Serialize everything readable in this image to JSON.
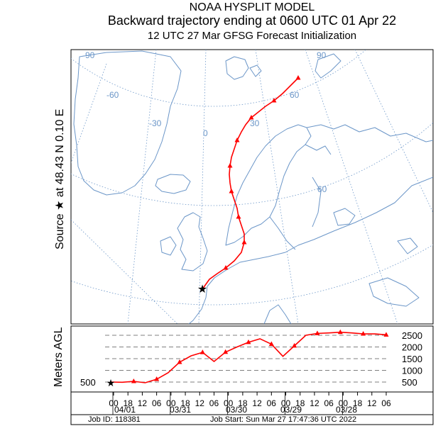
{
  "header": {
    "line1": "NOAA HYSPLIT MODEL",
    "line2": "Backward trajectory ending at 0600 UTC 01 Apr 22",
    "line3": "12 UTC 27 Mar    GFSG  Forecast Initialization"
  },
  "source_label": "Source ★   at    48.43 N    0.10 E",
  "map": {
    "grid_labels": [
      "-90",
      "-60",
      "-30",
      "0",
      "30",
      "60",
      "90",
      "60"
    ],
    "trajectory_color": "#ff0000",
    "coast_color": "#6b96c8",
    "grid_color": "#6b96c8"
  },
  "chart_data": {
    "type": "line",
    "ylabel": "Meters AGL",
    "ytick_labels": [
      "2500",
      "2000",
      "1500",
      "1000",
      "500"
    ],
    "start_height_label": "500",
    "x_hour_labels": [
      "00",
      "18",
      "12",
      "06",
      "00",
      "18",
      "12",
      "06",
      "00",
      "18",
      "12",
      "06",
      "00",
      "18",
      "12",
      "06",
      "00",
      "18",
      "12",
      "06"
    ],
    "x_date_labels": [
      "04/01",
      "03/31",
      "03/30",
      "03/29",
      "03/28"
    ],
    "heights_m": [
      500,
      490,
      530,
      470,
      620,
      900,
      1350,
      1620,
      1770,
      1380,
      1780,
      2000,
      2200,
      2350,
      2120,
      1600,
      2050,
      2500,
      2580,
      2600,
      2630,
      2600,
      2560,
      2560,
      2520
    ],
    "series_color": "#ff0000"
  },
  "footer": {
    "job_id": "Job ID: 118381",
    "job_start": "Job Start: Sun Mar 27 17:47:36 UTC 2022"
  }
}
